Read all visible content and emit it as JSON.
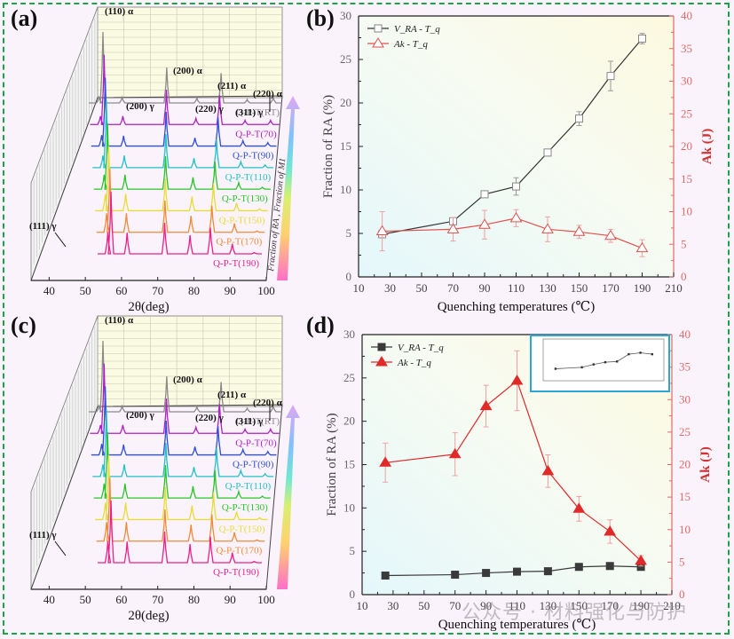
{
  "panels": {
    "a": "(a)",
    "b": "(b)",
    "c": "(c)",
    "d": "(d)"
  },
  "watermark": "公众号 · 材料强化与防护",
  "chart_data": [
    {
      "id": "a",
      "type": "line",
      "title": "",
      "xlabel": "2θ(deg)",
      "ylabel": "",
      "xlim": [
        35,
        100
      ],
      "xticks": [
        40,
        50,
        60,
        70,
        80,
        90,
        100
      ],
      "colorbar_label": "Fraction of RA , Fraction of M1",
      "peak_labels": [
        "(110) α",
        "(200) α",
        "(211) α",
        "(220) α",
        "(200) γ",
        "(220) γ",
        "(311) γ",
        "(111) γ"
      ],
      "series": [
        {
          "name": "Q-P-T(RT)",
          "color": "#8a8a8a",
          "peaks": [
            [
              44.7,
              1.0
            ],
            [
              65.0,
              0.5
            ],
            [
              82.3,
              0.42
            ],
            [
              98.9,
              0.08
            ],
            [
              50.8,
              0.08
            ],
            [
              74.6,
              0.07
            ],
            [
              90.6,
              0.05
            ],
            [
              43.5,
              0.08
            ]
          ]
        },
        {
          "name": "Q-P-T(70)",
          "color": "#b21ec6",
          "peaks": [
            [
              44.7,
              1.0
            ],
            [
              65.0,
              0.5
            ],
            [
              82.3,
              0.42
            ],
            [
              98.9,
              0.06
            ],
            [
              50.8,
              0.12
            ],
            [
              74.6,
              0.09
            ],
            [
              90.6,
              0.06
            ],
            [
              43.5,
              0.12
            ]
          ]
        },
        {
          "name": "Q-P-T(90)",
          "color": "#2f4fd8",
          "peaks": [
            [
              44.7,
              1.0
            ],
            [
              65.0,
              0.5
            ],
            [
              82.3,
              0.42
            ],
            [
              98.9,
              0.05
            ],
            [
              50.8,
              0.15
            ],
            [
              74.6,
              0.12
            ],
            [
              90.6,
              0.08
            ],
            [
              43.5,
              0.16
            ]
          ]
        },
        {
          "name": "Q-P-T(110)",
          "color": "#22c0c8",
          "peaks": [
            [
              44.7,
              1.0
            ],
            [
              65.0,
              0.5
            ],
            [
              82.3,
              0.42
            ],
            [
              98.9,
              0.04
            ],
            [
              50.8,
              0.18
            ],
            [
              74.6,
              0.14
            ],
            [
              90.6,
              0.09
            ],
            [
              43.5,
              0.18
            ]
          ]
        },
        {
          "name": "Q-P-T(130)",
          "color": "#2bc42b",
          "peaks": [
            [
              44.7,
              1.0
            ],
            [
              65.0,
              0.5
            ],
            [
              82.3,
              0.42
            ],
            [
              98.9,
              0.03
            ],
            [
              50.8,
              0.22
            ],
            [
              74.6,
              0.18
            ],
            [
              90.6,
              0.1
            ],
            [
              43.5,
              0.22
            ]
          ]
        },
        {
          "name": "Q-P-T(150)",
          "color": "#e8dc3a",
          "peaks": [
            [
              44.7,
              1.0
            ],
            [
              65.0,
              0.5
            ],
            [
              82.3,
              0.42
            ],
            [
              98.9,
              0.03
            ],
            [
              50.8,
              0.26
            ],
            [
              74.6,
              0.22
            ],
            [
              90.6,
              0.12
            ],
            [
              43.5,
              0.26
            ]
          ]
        },
        {
          "name": "Q-P-T(170)",
          "color": "#f08a3a",
          "peaks": [
            [
              44.7,
              1.0
            ],
            [
              65.0,
              0.5
            ],
            [
              82.3,
              0.42
            ],
            [
              98.9,
              0.02
            ],
            [
              50.8,
              0.3
            ],
            [
              74.6,
              0.26
            ],
            [
              90.6,
              0.14
            ],
            [
              43.5,
              0.3
            ]
          ]
        },
        {
          "name": "Q-P-T(190)",
          "color": "#e8228a",
          "peaks": [
            [
              44.7,
              1.0
            ],
            [
              65.0,
              0.5
            ],
            [
              82.3,
              0.42
            ],
            [
              98.9,
              0.02
            ],
            [
              50.8,
              0.34
            ],
            [
              74.6,
              0.3
            ],
            [
              90.6,
              0.16
            ],
            [
              43.5,
              0.34
            ]
          ]
        }
      ]
    },
    {
      "id": "b",
      "type": "line",
      "title": "",
      "xlabel": "Quenching temperatures (℃)",
      "ylabel": "Fraction of RA (%)",
      "y2label": "Ak (J)",
      "xlim": [
        10,
        210
      ],
      "ylim": [
        0,
        30
      ],
      "y2lim": [
        0,
        40
      ],
      "xticks": [
        10,
        30,
        50,
        70,
        90,
        110,
        130,
        150,
        170,
        190,
        210
      ],
      "yticks": [
        0,
        5,
        10,
        15,
        20,
        25,
        30
      ],
      "y2ticks": [
        0,
        5,
        10,
        15,
        20,
        25,
        30,
        35,
        40
      ],
      "legend_position": "top-left",
      "x": [
        25,
        70,
        90,
        110,
        130,
        150,
        170,
        190
      ],
      "series": [
        {
          "name": "V_RA - T_q",
          "axis": "left",
          "marker": "open-square",
          "color": "#333333",
          "values": [
            4.9,
            6.4,
            9.5,
            10.4,
            14.3,
            18.2,
            23.1,
            27.4
          ],
          "errors": [
            0.3,
            0.3,
            0.2,
            1.0,
            0.4,
            0.8,
            1.7,
            0.6
          ]
        },
        {
          "name": "Ak - T_q",
          "axis": "right",
          "marker": "open-triangle",
          "color": "#e0504f",
          "values": [
            7.0,
            7.3,
            8.0,
            9.0,
            7.3,
            6.9,
            6.3,
            4.4
          ],
          "errors": [
            3.0,
            1.8,
            2.2,
            1.3,
            1.9,
            1.0,
            1.0,
            1.3
          ]
        }
      ]
    },
    {
      "id": "c",
      "type": "line",
      "title": "",
      "xlabel": "2θ(deg)",
      "ylabel": "",
      "xlim": [
        35,
        100
      ],
      "xticks": [
        40,
        50,
        60,
        70,
        80,
        90,
        100
      ],
      "peak_labels": [
        "(110) α",
        "(200) α",
        "(211) α",
        "(220) α",
        "(200) γ",
        "(220) γ",
        "(311) γ",
        "(111) γ"
      ],
      "series_names": [
        "Q-P-T(RT)",
        "Q-P-T(70)",
        "Q-P-T(90)",
        "Q-P-T(110)",
        "Q-P-T(130)",
        "Q-P-T(150)",
        "Q-P-T(170)",
        "Q-P-T(190)"
      ]
    },
    {
      "id": "d",
      "type": "line",
      "title": "",
      "xlabel": "Quenching temperatures (℃)",
      "ylabel": "Fraction of RA (%)",
      "y2label": "Ak (J)",
      "xlim": [
        10,
        210
      ],
      "ylim": [
        0,
        30
      ],
      "y2lim": [
        0,
        40
      ],
      "xticks": [
        10,
        30,
        50,
        70,
        90,
        110,
        130,
        150,
        170,
        190,
        210
      ],
      "yticks": [
        0,
        5,
        10,
        15,
        20,
        25,
        30
      ],
      "y2ticks": [
        0,
        5,
        10,
        15,
        20,
        25,
        30,
        35,
        40
      ],
      "legend_position": "top-left",
      "inset": "zoomed V_RA - T_q curve (top-right)",
      "x": [
        25,
        70,
        90,
        110,
        130,
        150,
        170,
        190
      ],
      "series": [
        {
          "name": "V_RA - T_q",
          "axis": "left",
          "marker": "filled-square",
          "color": "#3a3a3a",
          "values": [
            2.2,
            2.3,
            2.5,
            2.65,
            2.7,
            3.2,
            3.3,
            3.2
          ],
          "errors": [
            0,
            0,
            0,
            0,
            0,
            0,
            0,
            0
          ]
        },
        {
          "name": "Ak - T_q",
          "axis": "right",
          "marker": "filled-triangle",
          "color": "#e02a2a",
          "values": [
            20.3,
            21.6,
            29.0,
            32.9,
            19.0,
            13.2,
            9.7,
            5.2
          ],
          "errors": [
            3.0,
            3.3,
            3.2,
            4.6,
            2.5,
            1.9,
            1.8,
            0.8
          ]
        }
      ]
    }
  ]
}
